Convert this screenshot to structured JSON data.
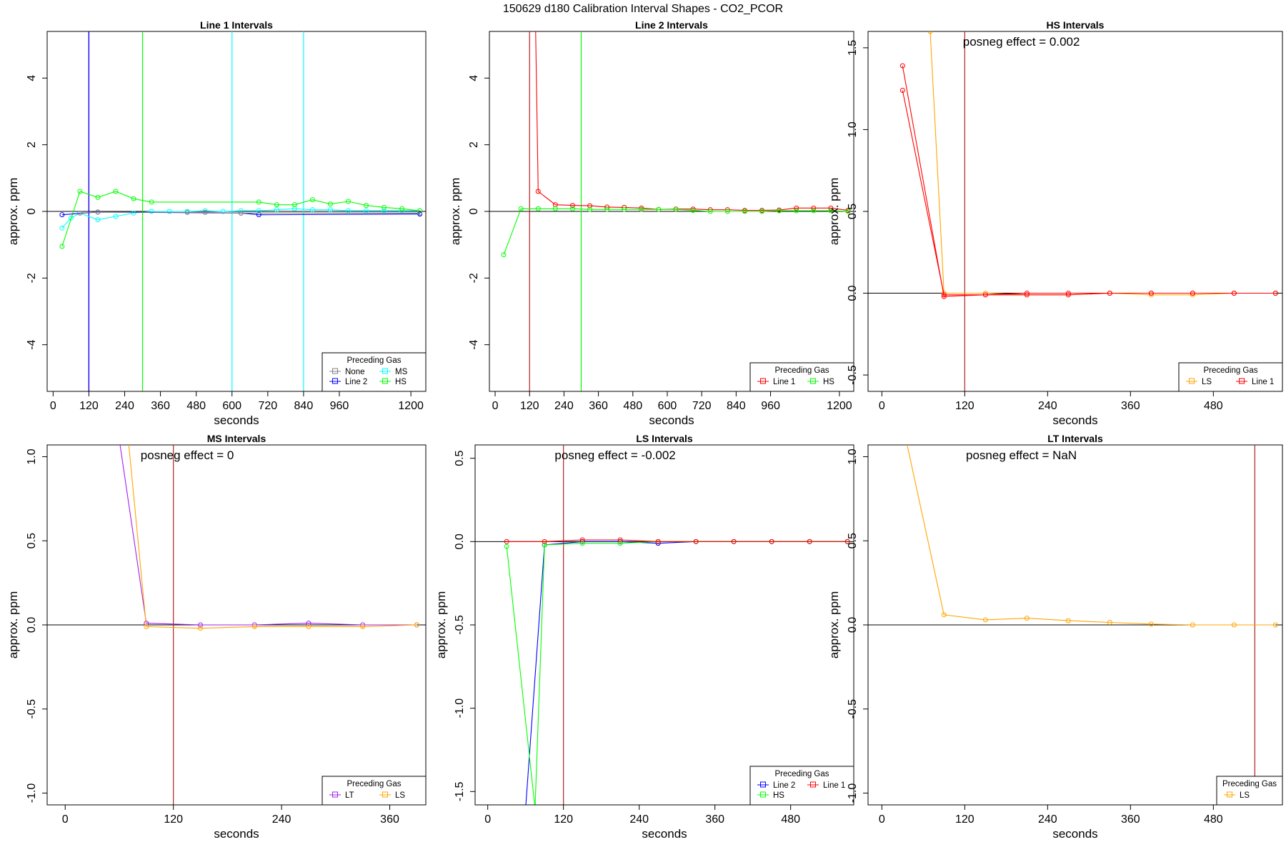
{
  "figure": {
    "title": "150629  d180   Calibration Interval Shapes - CO2_PCOR"
  },
  "chart_data": [
    {
      "type": "line",
      "title": "Line 1 Intervals",
      "xlabel": "seconds",
      "ylabel": "approx. ppm",
      "xlim": [
        -20,
        1250
      ],
      "ylim": [
        -5.4,
        5.4
      ],
      "xticks": [
        0,
        120,
        240,
        360,
        480,
        600,
        720,
        840,
        960,
        1200
      ],
      "yticks": [
        -4,
        -2,
        0,
        2,
        4
      ],
      "hline": 0,
      "annotation": "",
      "vlines": [
        {
          "x": 120,
          "color": "#b22222"
        },
        {
          "x": 120,
          "color": "#a020f0"
        },
        {
          "x": 120,
          "color": "#0000ff"
        },
        {
          "x": 300,
          "color": "#00ff00"
        },
        {
          "x": 600,
          "color": "#00ffff"
        },
        {
          "x": 840,
          "color": "#00ffff"
        }
      ],
      "legend": {
        "title": "Preceding Gas",
        "position": "bottom-right",
        "columns": 2,
        "entries": [
          {
            "label": "None",
            "color": "#808080"
          },
          {
            "label": "Line 2",
            "color": "#0000ff"
          },
          {
            "label": "MS",
            "color": "#00ffff"
          },
          {
            "label": "HS",
            "color": "#00ff00"
          }
        ]
      },
      "series": [
        {
          "color": "#00ffff",
          "x": [
            30,
            60,
            90,
            150,
            210,
            270,
            330,
            390,
            450,
            510,
            570,
            630,
            690,
            750,
            810,
            870,
            930,
            990,
            1050,
            1110,
            1170,
            1230
          ],
          "y": [
            -0.5,
            -0.2,
            -0.05,
            -0.25,
            -0.15,
            -0.05,
            0.0,
            0.0,
            0.0,
            0.02,
            0.0,
            0.02,
            0.02,
            0.05,
            0.08,
            0.05,
            0.05,
            0.02,
            0.02,
            0.02,
            0.02,
            0.02
          ]
        },
        {
          "color": "#00ff00",
          "x": [
            30,
            90,
            150,
            210,
            270,
            330,
            690,
            750,
            810,
            870,
            930,
            990,
            1050,
            1110,
            1170,
            1230
          ],
          "y": [
            -1.05,
            0.6,
            0.42,
            0.6,
            0.38,
            0.28,
            0.28,
            0.2,
            0.2,
            0.35,
            0.22,
            0.3,
            0.18,
            0.12,
            0.08,
            0.02
          ]
        },
        {
          "color": "#0000ff",
          "x": [
            30,
            150,
            630,
            690,
            1230
          ],
          "y": [
            -0.1,
            -0.02,
            -0.05,
            -0.1,
            -0.08
          ]
        },
        {
          "color": "#808080",
          "x": [
            90,
            150,
            450,
            510,
            630,
            1230
          ],
          "y": [
            -0.05,
            -0.02,
            -0.03,
            -0.03,
            -0.05,
            -0.05
          ]
        }
      ]
    },
    {
      "type": "line",
      "title": "Line 2 Intervals",
      "xlabel": "seconds",
      "ylabel": "approx. ppm",
      "xlim": [
        -20,
        1250
      ],
      "ylim": [
        -5.4,
        5.4
      ],
      "xticks": [
        0,
        120,
        240,
        360,
        480,
        600,
        720,
        840,
        960,
        1200
      ],
      "yticks": [
        -4,
        -2,
        0,
        2,
        4
      ],
      "hline": 0,
      "annotation": "",
      "vlines": [
        {
          "x": 120,
          "color": "#b22222"
        },
        {
          "x": 300,
          "color": "#00ff00"
        }
      ],
      "legend": {
        "title": "Preceding Gas",
        "position": "bottom-right",
        "columns": 2,
        "entries": [
          {
            "label": "Line 1",
            "color": "#ff0000"
          },
          {
            "label": "HS",
            "color": "#00ff00"
          }
        ]
      },
      "series": [
        {
          "color": "#ff0000",
          "x": [
            140,
            150,
            210,
            270,
            330,
            390,
            450,
            510,
            570,
            630,
            690,
            750,
            810,
            870,
            930,
            990,
            1050,
            1110,
            1170,
            1230
          ],
          "y": [
            6.0,
            0.6,
            0.2,
            0.18,
            0.17,
            0.13,
            0.12,
            0.1,
            0.06,
            0.07,
            0.07,
            0.05,
            0.05,
            0.03,
            0.03,
            0.04,
            0.1,
            0.1,
            0.1,
            0.03
          ]
        },
        {
          "color": "#00ff00",
          "x": [
            30,
            90,
            150,
            210,
            270,
            330,
            390,
            450,
            510,
            570,
            630,
            690,
            750,
            810,
            870,
            930,
            990,
            1050,
            1110,
            1170,
            1230
          ],
          "y": [
            -1.3,
            0.08,
            0.08,
            0.08,
            0.08,
            0.06,
            0.06,
            0.06,
            0.06,
            0.06,
            0.06,
            0.03,
            0.0,
            0.0,
            0.0,
            0.0,
            0.02,
            0.02,
            0.02,
            0.02,
            0.0
          ]
        }
      ]
    },
    {
      "type": "line",
      "title": "HS Intervals",
      "xlabel": "seconds",
      "ylabel": "approx. ppm",
      "xlim": [
        -20,
        580
      ],
      "ylim": [
        -0.6,
        1.6
      ],
      "xticks": [
        0,
        120,
        240,
        360,
        480
      ],
      "yticks": [
        -0.5,
        0.0,
        0.5,
        1.0,
        1.5
      ],
      "hline": 0,
      "annotation": "posneg effect = 0.002",
      "vlines": [
        {
          "x": 120,
          "color": "#b22222"
        }
      ],
      "legend": {
        "title": "Preceding Gas",
        "position": "bottom-right",
        "columns": 2,
        "entries": [
          {
            "label": "LS",
            "color": "#ffa500"
          },
          {
            "label": "Line 1",
            "color": "#ff0000"
          }
        ]
      },
      "series": [
        {
          "color": "#ffa500",
          "x": [
            70,
            90,
            150,
            210,
            270,
            330,
            390,
            450,
            510,
            570
          ],
          "y": [
            1.6,
            0.0,
            0.0,
            -0.01,
            -0.01,
            0.0,
            -0.01,
            -0.01,
            0.0,
            0.0
          ]
        },
        {
          "color": "#ff0000",
          "x": [
            30,
            90,
            150,
            210,
            270,
            330,
            390,
            450,
            510,
            570
          ],
          "y": [
            1.39,
            -0.02,
            -0.01,
            -0.01,
            -0.01,
            0.0,
            0.0,
            0.0,
            0.0,
            0.0
          ]
        },
        {
          "color": "#ff0000",
          "x": [
            30,
            90,
            150,
            210,
            270,
            330,
            390,
            450,
            510,
            570
          ],
          "y": [
            1.24,
            -0.01,
            -0.01,
            0.0,
            0.0,
            0.0,
            0.0,
            0.0,
            0.0,
            0.0
          ]
        }
      ]
    },
    {
      "type": "line",
      "title": "MS Intervals",
      "xlabel": "seconds",
      "ylabel": "approx. ppm",
      "xlim": [
        -20,
        400
      ],
      "ylim": [
        -1.07,
        1.07
      ],
      "xticks": [
        0,
        120,
        240,
        360
      ],
      "yticks": [
        -1.0,
        -0.5,
        0.0,
        0.5,
        1.0
      ],
      "hline": 0,
      "annotation": "posneg effect = 0",
      "vlines": [
        {
          "x": 120,
          "color": "#b22222"
        }
      ],
      "legend": {
        "title": "Preceding Gas",
        "position": "bottom-right",
        "columns": 2,
        "entries": [
          {
            "label": "LT",
            "color": "#a020f0"
          },
          {
            "label": "LS",
            "color": "#ffa500"
          }
        ]
      },
      "series": [
        {
          "color": "#a020f0",
          "x": [
            60,
            90,
            150,
            210,
            270,
            330,
            390
          ],
          "y": [
            1.1,
            0.01,
            0.0,
            0.0,
            0.01,
            0.0,
            0.0
          ]
        },
        {
          "color": "#ffa500",
          "x": [
            70,
            90,
            150,
            210,
            270,
            330,
            390
          ],
          "y": [
            1.1,
            -0.01,
            -0.02,
            -0.01,
            -0.01,
            -0.01,
            0.0
          ]
        }
      ]
    },
    {
      "type": "line",
      "title": "LS Intervals",
      "xlabel": "seconds",
      "ylabel": "approx. ppm",
      "xlim": [
        -20,
        580
      ],
      "ylim": [
        -1.58,
        0.58
      ],
      "xticks": [
        0,
        120,
        240,
        360,
        480
      ],
      "yticks": [
        -1.5,
        -1.0,
        -0.5,
        0.0,
        0.5
      ],
      "hline": 0,
      "annotation": "posneg effect = -0.002",
      "vlines": [
        {
          "x": 120,
          "color": "#b22222"
        }
      ],
      "legend": {
        "title": "Preceding Gas",
        "position": "bottom-right",
        "columns": 2,
        "entries": [
          {
            "label": "Line 2",
            "color": "#0000ff"
          },
          {
            "label": "HS",
            "color": "#00ff00"
          },
          {
            "label": "Line 1",
            "color": "#ff0000"
          }
        ]
      },
      "series": [
        {
          "color": "#0000ff",
          "x": [
            60,
            90,
            150,
            210,
            270,
            330,
            390,
            450,
            510,
            570
          ],
          "y": [
            -1.6,
            -0.02,
            0.0,
            0.0,
            -0.01,
            0.0,
            0.0,
            0.0,
            0.0,
            0.0
          ]
        },
        {
          "color": "#00ff00",
          "x": [
            30,
            75,
            90,
            150,
            210,
            270,
            330,
            390,
            450,
            510,
            570
          ],
          "y": [
            -0.03,
            -1.6,
            -0.02,
            -0.01,
            -0.01,
            0.0,
            0.0,
            0.0,
            0.0,
            0.0,
            0.0
          ]
        },
        {
          "color": "#ff0000",
          "x": [
            30,
            90,
            150,
            210,
            270,
            330,
            390,
            450,
            510,
            570
          ],
          "y": [
            0.0,
            0.0,
            0.01,
            0.01,
            0.0,
            0.0,
            0.0,
            0.0,
            0.0,
            0.0
          ]
        }
      ]
    },
    {
      "type": "line",
      "title": "LT Intervals",
      "xlabel": "seconds",
      "ylabel": "approx. ppm",
      "xlim": [
        -20,
        580
      ],
      "ylim": [
        -1.07,
        1.07
      ],
      "xticks": [
        0,
        120,
        240,
        360,
        480
      ],
      "yticks": [
        -1.0,
        -0.5,
        0.0,
        0.5,
        1.0
      ],
      "hline": 0,
      "annotation": "posneg effect = NaN",
      "vlines": [
        {
          "x": 540,
          "color": "#b22222"
        }
      ],
      "legend": {
        "title": "Preceding Gas",
        "position": "bottom-right",
        "columns": 1,
        "entries": [
          {
            "label": "LS",
            "color": "#ffa500"
          }
        ]
      },
      "series": [
        {
          "color": "#ffa500",
          "x": [
            35,
            90,
            150,
            210,
            270,
            330,
            390,
            450,
            510,
            570
          ],
          "y": [
            1.1,
            0.06,
            0.03,
            0.04,
            0.025,
            0.015,
            0.005,
            0.0,
            0.0,
            0.0
          ]
        }
      ]
    }
  ]
}
